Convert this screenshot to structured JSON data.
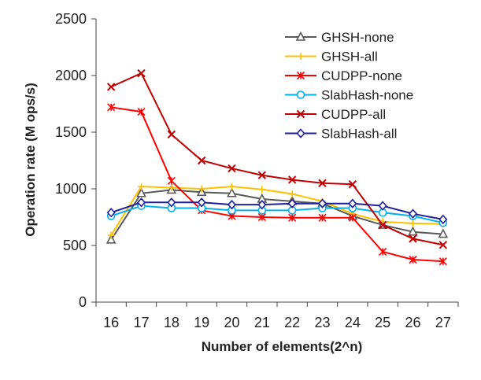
{
  "chart_data": {
    "type": "line",
    "title": "",
    "xlabel": "Number of elements(2^n)",
    "ylabel": "Operation rate (M ops/s)",
    "categories": [
      "16",
      "17",
      "18",
      "19",
      "20",
      "21",
      "22",
      "23",
      "24",
      "25",
      "26",
      "27"
    ],
    "ylim": [
      0,
      2500
    ],
    "yticks": [
      "0",
      "500",
      "1000",
      "1500",
      "2000",
      "2500"
    ],
    "grid": false,
    "legend_position": "top-right",
    "series": [
      {
        "name": "GHSH-none",
        "color": "#595959",
        "marker": "triangle",
        "values": [
          550,
          960,
          990,
          970,
          960,
          910,
          890,
          870,
          760,
          680,
          620,
          600
        ]
      },
      {
        "name": "GHSH-all",
        "color": "#FFC000",
        "marker": "plus",
        "values": [
          590,
          1020,
          1010,
          1000,
          1020,
          995,
          955,
          890,
          780,
          710,
          695,
          690
        ]
      },
      {
        "name": "CUDPP-none",
        "color": "#FF0000",
        "marker": "star",
        "values": [
          1720,
          1680,
          1070,
          810,
          760,
          750,
          745,
          745,
          745,
          445,
          375,
          360
        ]
      },
      {
        "name": "SlabHash-none",
        "color": "#00B0F0",
        "marker": "circle",
        "values": [
          760,
          850,
          830,
          830,
          810,
          810,
          810,
          830,
          830,
          790,
          760,
          700
        ]
      },
      {
        "name": "CUDPP-all",
        "color": "#C00000",
        "marker": "x",
        "values": [
          1900,
          2020,
          1480,
          1250,
          1180,
          1120,
          1080,
          1050,
          1040,
          680,
          560,
          505
        ]
      },
      {
        "name": "SlabHash-all",
        "color": "#1F1F9F",
        "marker": "diamond",
        "values": [
          790,
          880,
          880,
          880,
          860,
          860,
          870,
          870,
          870,
          850,
          780,
          730
        ]
      }
    ]
  }
}
